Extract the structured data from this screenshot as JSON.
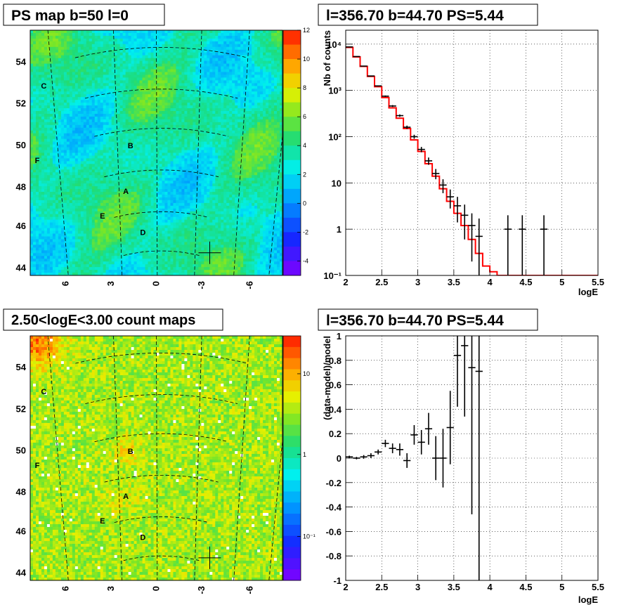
{
  "colors": {
    "frame": "#000000",
    "model_line": "#ff0000",
    "data_marker": "#000000"
  },
  "panels": {
    "tl": {
      "title": "PS map b=50 l=0",
      "lat_ticks": [
        "54",
        "52",
        "50",
        "48",
        "46",
        "44"
      ],
      "lon_ticks": [
        "6",
        "3",
        "0",
        "-3",
        "-6"
      ],
      "palette_ticks": [
        "12",
        "10",
        "8",
        "6",
        "4",
        "2",
        "0",
        "-2",
        "-4"
      ],
      "labels": [
        "C",
        "B",
        "F",
        "A",
        "E",
        "D"
      ]
    },
    "tr": {
      "title": "l=356.70 b=44.70 PS=5.44",
      "ylabel": "Nb of counts",
      "xlabel": "logE",
      "x_ticks": [
        "2",
        "2.5",
        "3",
        "3.5",
        "4",
        "4.5",
        "5",
        "5.5"
      ],
      "y_ticks": [
        "10⁻¹",
        "1",
        "10",
        "10²",
        "10³",
        "10⁴"
      ]
    },
    "bl": {
      "title": "2.50<logE<3.00 count maps",
      "lat_ticks": [
        "54",
        "52",
        "50",
        "48",
        "46",
        "44"
      ],
      "lon_ticks": [
        "6",
        "3",
        "0",
        "-3",
        "-6"
      ],
      "palette_ticks": [
        "10",
        "1",
        "10⁻¹"
      ],
      "labels": [
        "C",
        "B",
        "F",
        "A",
        "E",
        "D"
      ]
    },
    "br": {
      "title": "l=356.70 b=44.70 PS=5.44",
      "ylabel": "(data-model)/model",
      "xlabel": "logE",
      "x_ticks": [
        "2",
        "2.5",
        "3",
        "3.5",
        "4",
        "4.5",
        "5",
        "5.5"
      ],
      "y_ticks": [
        "1",
        "0.8",
        "0.6",
        "0.4",
        "0.2",
        "0",
        "-0.2",
        "-0.4",
        "-0.6",
        "-0.8",
        "-1"
      ]
    }
  },
  "chart_data": [
    {
      "type": "heatmap",
      "title": "PS map b=50 l=0",
      "xlabel": "",
      "ylabel": "",
      "x_ticks": [
        6,
        3,
        0,
        -3,
        -6
      ],
      "y_ticks": [
        54,
        52,
        50,
        48,
        46,
        44
      ],
      "z_range": [
        -5,
        12
      ],
      "sources": [
        {
          "name": "C",
          "lon": 7.6,
          "lat": 52.8
        },
        {
          "name": "B",
          "lon": 2.0,
          "lat": 49.9
        },
        {
          "name": "F",
          "lon": 8.0,
          "lat": 49.2
        },
        {
          "name": "A",
          "lon": 2.3,
          "lat": 47.7
        },
        {
          "name": "E",
          "lon": 3.8,
          "lat": 46.5
        },
        {
          "name": "D",
          "lon": 1.2,
          "lat": 45.7
        }
      ],
      "marker": {
        "lon": -3.3,
        "lat": 44.7
      }
    },
    {
      "type": "line",
      "title": "l=356.70 b=44.70 PS=5.44",
      "xlabel": "logE",
      "ylabel": "Nb of counts",
      "xlim": [
        2,
        5.5
      ],
      "ylim": [
        0.1,
        20000
      ],
      "log_y": true,
      "grid": true,
      "series": [
        {
          "style": "step",
          "bin_width": 0.1,
          "x": [
            2.0,
            2.1,
            2.2,
            2.3,
            2.4,
            2.5,
            2.6,
            2.7,
            2.8,
            2.9,
            3.0,
            3.1,
            3.2,
            3.3,
            3.4,
            3.5,
            3.6,
            3.7,
            3.8,
            3.9,
            4.0,
            4.1,
            4.2,
            4.3,
            4.4,
            4.5,
            4.6,
            4.7,
            4.8,
            4.9,
            5.0,
            5.1,
            5.2,
            5.3,
            5.4
          ],
          "values": [
            8500,
            5300,
            3300,
            2000,
            1200,
            700,
            420,
            250,
            150,
            85,
            48,
            26,
            14,
            7.5,
            4.0,
            2.2,
            1.2,
            0.6,
            0.3,
            0.16,
            0.12,
            0.1,
            0.1,
            0.1,
            0.1,
            0.1,
            0.1,
            0.1,
            0.1,
            0.1,
            0.1,
            0.1,
            0.1,
            0.1,
            0.1
          ]
        },
        {
          "style": "errorbar",
          "x": [
            2.05,
            2.15,
            2.25,
            2.35,
            2.45,
            2.55,
            2.65,
            2.75,
            2.85,
            2.95,
            3.05,
            3.15,
            3.25,
            3.35,
            3.45,
            3.55,
            3.65,
            3.75,
            3.85,
            4.25,
            4.45,
            4.75
          ],
          "values": [
            8700,
            5400,
            3350,
            2050,
            1250,
            750,
            460,
            285,
            160,
            100,
            53,
            30,
            16,
            9,
            5,
            3.2,
            2,
            1.2,
            0.7,
            1,
            1,
            1
          ],
          "err_lo": [
            90,
            73,
            58,
            45,
            35,
            27,
            21,
            17,
            13,
            10,
            7,
            5.4,
            4,
            3,
            2.2,
            1.8,
            1.4,
            1.0,
            0.7,
            1,
            1,
            1
          ],
          "err_hi": [
            90,
            73,
            58,
            45,
            35,
            27,
            21,
            17,
            13,
            10,
            7,
            5.4,
            4,
            3,
            2.2,
            1.8,
            1.4,
            1.0,
            1.0,
            1,
            1,
            1
          ]
        }
      ]
    },
    {
      "type": "heatmap",
      "title": "2.50<logE<3.00 count maps",
      "xlabel": "",
      "ylabel": "",
      "x_ticks": [
        6,
        3,
        0,
        -3,
        -6
      ],
      "y_ticks": [
        54,
        52,
        50,
        48,
        46,
        44
      ],
      "z_range": [
        0.05,
        20
      ],
      "log_z": true,
      "sources": [
        {
          "name": "C",
          "lon": 7.6,
          "lat": 52.8
        },
        {
          "name": "B",
          "lon": 2.0,
          "lat": 49.9
        },
        {
          "name": "F",
          "lon": 8.0,
          "lat": 49.2
        },
        {
          "name": "A",
          "lon": 2.3,
          "lat": 47.7
        },
        {
          "name": "E",
          "lon": 3.8,
          "lat": 46.5
        },
        {
          "name": "D",
          "lon": 1.2,
          "lat": 45.7
        }
      ],
      "marker": {
        "lon": -3.3,
        "lat": 44.7
      }
    },
    {
      "type": "scatter",
      "title": "l=356.70 b=44.70 PS=5.44",
      "xlabel": "logE",
      "ylabel": "(data-model)/model",
      "xlim": [
        2,
        5.5
      ],
      "ylim": [
        -1,
        1
      ],
      "grid": true,
      "series": [
        {
          "style": "errorbar",
          "x": [
            2.05,
            2.15,
            2.25,
            2.35,
            2.45,
            2.55,
            2.65,
            2.75,
            2.85,
            2.95,
            3.05,
            3.15,
            3.25,
            3.35,
            3.45,
            3.55,
            3.65,
            3.75,
            3.85
          ],
          "values": [
            0.01,
            0.0,
            0.01,
            0.02,
            0.05,
            0.12,
            0.08,
            0.07,
            -0.02,
            0.19,
            0.13,
            0.24,
            0.0,
            0.0,
            0.25,
            0.84,
            0.92,
            0.74,
            0.71
          ],
          "err": [
            0.01,
            0.01,
            0.015,
            0.02,
            0.02,
            0.03,
            0.04,
            0.05,
            0.06,
            0.08,
            0.1,
            0.13,
            0.18,
            0.24,
            0.3,
            0.42,
            0.58,
            1.2,
            2.0
          ]
        }
      ]
    }
  ]
}
